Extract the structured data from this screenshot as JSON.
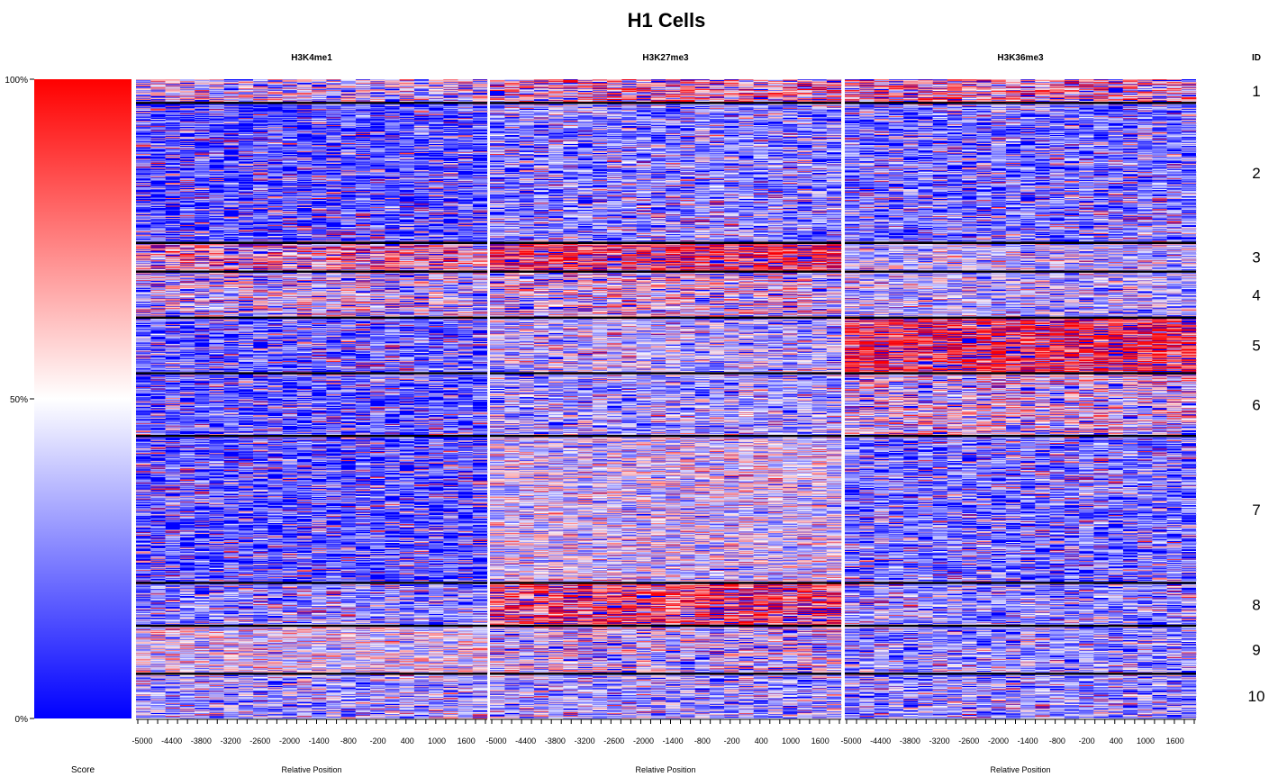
{
  "chart_data": {
    "type": "heatmap",
    "title": "H1 Cells",
    "color_scale": {
      "label": "Score",
      "ticks": [
        "100%",
        "50%",
        "0%"
      ],
      "low_color": "#0000ff",
      "mid_color": "#ffffff",
      "high_color": "#ff0000"
    },
    "x_ticks": [
      "-5000",
      "-4400",
      "-3800",
      "-3200",
      "-2600",
      "-2000",
      "-1400",
      "-800",
      "-200",
      "400",
      "1000",
      "1600"
    ],
    "xlabel": "Relative Position",
    "id_header": "ID",
    "clusters": [
      {
        "id": "1",
        "rows": 37
      },
      {
        "id": "2",
        "rows": 219
      },
      {
        "id": "3",
        "rows": 45
      },
      {
        "id": "4",
        "rows": 72
      },
      {
        "id": "5",
        "rows": 87
      },
      {
        "id": "6",
        "rows": 98
      },
      {
        "id": "7",
        "rows": 230
      },
      {
        "id": "8",
        "rows": 67
      },
      {
        "id": "9",
        "rows": 75
      },
      {
        "id": "10",
        "rows": 70
      }
    ],
    "panels": [
      {
        "name": "H3K4me1",
        "mean_score": [
          0.55,
          0.04,
          0.7,
          0.55,
          0.1,
          0.08,
          0.06,
          0.2,
          0.5,
          0.3
        ]
      },
      {
        "name": "H3K27me3",
        "mean_score": [
          0.7,
          0.2,
          0.9,
          0.6,
          0.35,
          0.3,
          0.45,
          0.85,
          0.55,
          0.3
        ]
      },
      {
        "name": "H3K36me3",
        "mean_score": [
          0.7,
          0.15,
          0.4,
          0.35,
          0.92,
          0.6,
          0.15,
          0.22,
          0.25,
          0.25
        ]
      }
    ]
  }
}
